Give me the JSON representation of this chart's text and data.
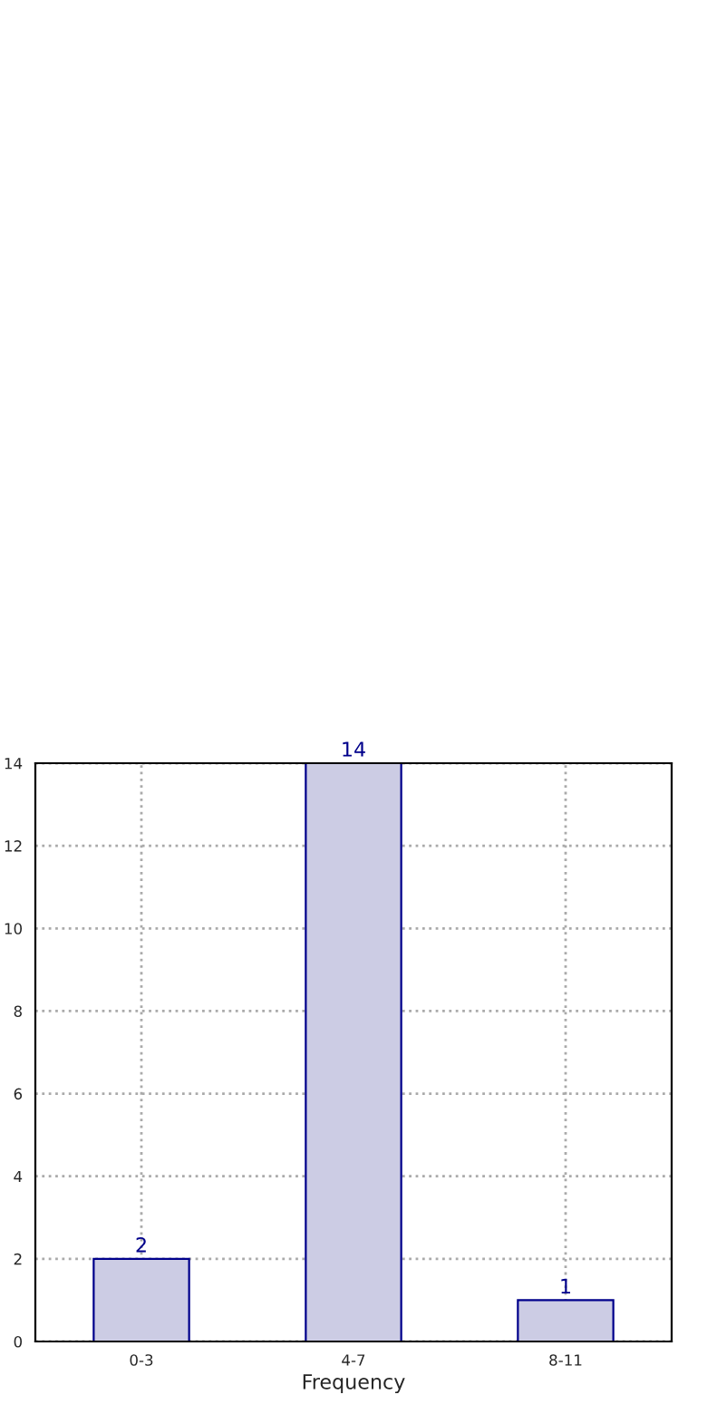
{
  "chart_data": {
    "type": "bar",
    "xlabel": "Frequency",
    "categories": [
      "0-3",
      "4-7",
      "8-11"
    ],
    "values": [
      2,
      14,
      1
    ],
    "color": "#cccce4",
    "ylim": [
      0,
      14
    ],
    "yticks": [
      0,
      2,
      4,
      6,
      8,
      10,
      12,
      14
    ],
    "grid": true,
    "data_labels": true
  }
}
